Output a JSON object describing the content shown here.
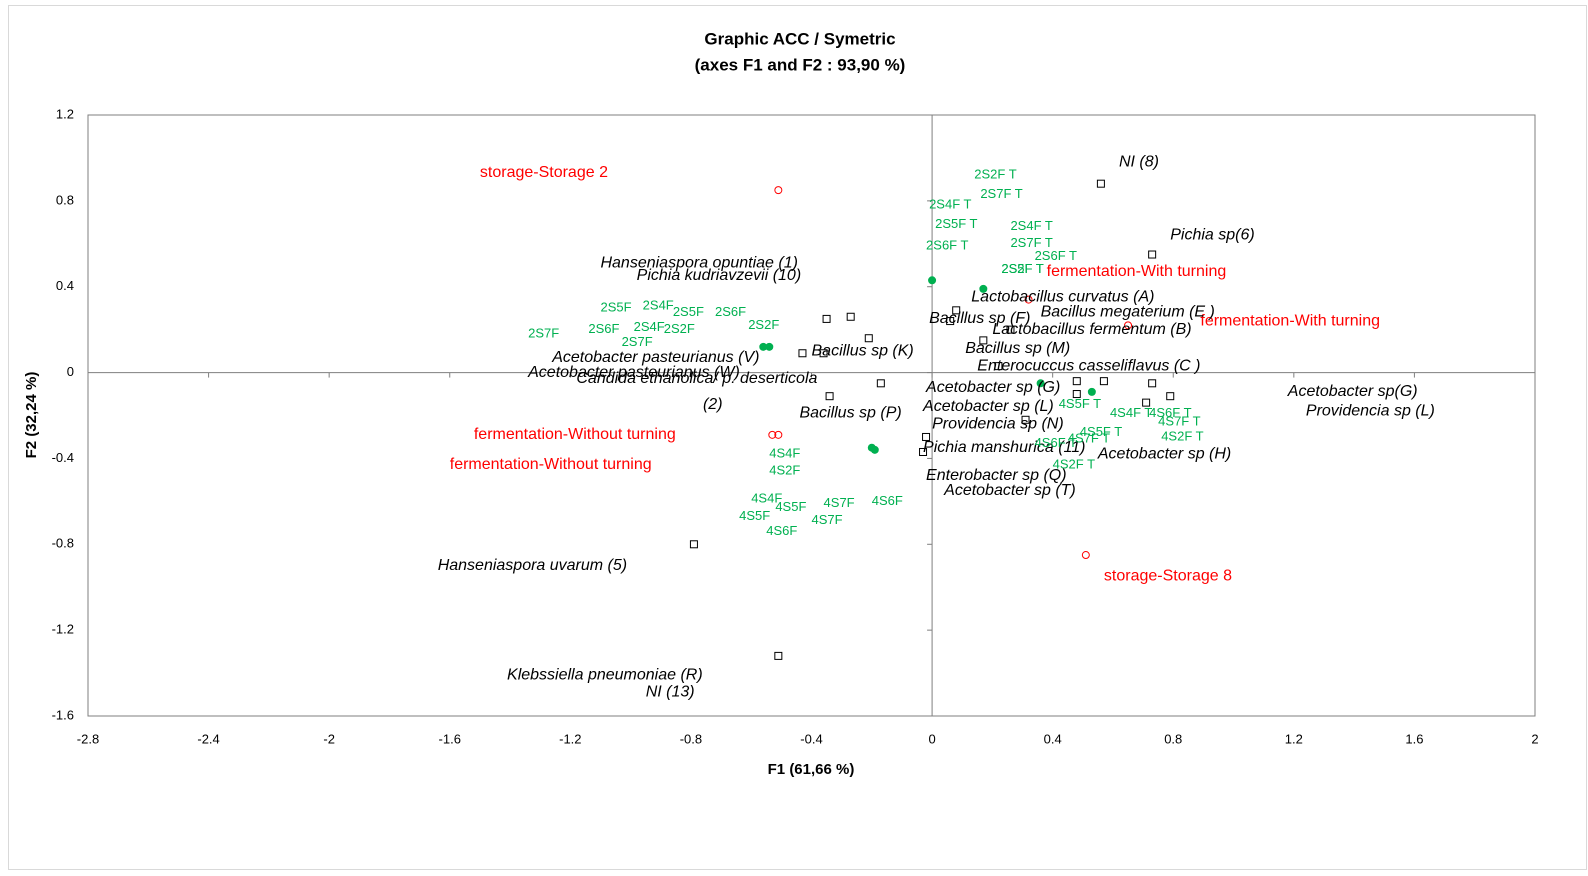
{
  "chart_data": {
    "type": "scatter",
    "title": "Graphic ACC / Symetric",
    "subtitle": "(axes F1 and F2 : 93,90 %)",
    "x_label": "F1 (61,66 %)",
    "y_label": "F2 (32,24 %)",
    "xlim": [
      -2.8,
      2
    ],
    "ylim": [
      -1.6,
      1.2
    ],
    "xticks": [
      -2.8,
      -2.4,
      -2,
      -1.6,
      -1.2,
      -0.8,
      -0.4,
      0,
      0.4,
      0.8,
      1.2,
      1.6,
      2
    ],
    "yticks": [
      -1.6,
      -1.2,
      -0.8,
      -0.4,
      0,
      0.4,
      0.8,
      1.2
    ],
    "series": [
      {
        "marker": "circle-open",
        "color": "#ff0000",
        "x": [
          -0.51,
          0.32,
          0.65,
          -0.53,
          -0.51,
          0.51
        ],
        "y": [
          0.85,
          0.34,
          0.22,
          -0.29,
          -0.29,
          -0.85
        ]
      },
      {
        "marker": "circle-filled",
        "color": "#00b050",
        "x": [
          0,
          0.17,
          -0.56,
          -0.54,
          0.36,
          0.53,
          -0.2,
          -0.19
        ],
        "y": [
          0.43,
          0.39,
          0.12,
          0.12,
          -0.05,
          -0.09,
          -0.35,
          -0.36
        ]
      },
      {
        "marker": "square-open",
        "color": "#000000",
        "x": [
          0.56,
          0.73,
          -0.35,
          -0.27,
          -0.21,
          -0.43,
          -0.36,
          0.08,
          0.06,
          0.17,
          0.26,
          0.22,
          -0.17,
          -0.34,
          0.57,
          0.73,
          0.48,
          0.79,
          0.71,
          0.31,
          -0.02,
          -0.03,
          -0.79,
          -0.51,
          0.48
        ],
        "y": [
          0.88,
          0.55,
          0.25,
          0.26,
          0.16,
          0.09,
          0.09,
          0.29,
          0.24,
          0.15,
          0.2,
          0.03,
          -0.05,
          -0.11,
          -0.04,
          -0.05,
          -0.04,
          -0.11,
          -0.14,
          -0.22,
          -0.3,
          -0.37,
          -0.8,
          -1.32,
          -0.1
        ]
      }
    ],
    "label_groups": [
      {
        "color": "#ff0000",
        "style": "normal",
        "size": 16,
        "items": [
          {
            "text": "storage-Storage 2",
            "x": -1.5,
            "y": 0.93
          },
          {
            "text": "fermentation-With turning",
            "x": 0.38,
            "y": 0.47
          },
          {
            "text": "fermentation-With turning",
            "x": 0.89,
            "y": 0.24
          },
          {
            "text": "fermentation-Without turning",
            "x": -1.52,
            "y": -0.29
          },
          {
            "text": "fermentation-Without turning",
            "x": -1.6,
            "y": -0.43
          },
          {
            "text": "storage-Storage 8",
            "x": 0.57,
            "y": -0.95
          }
        ]
      },
      {
        "color": "#000000",
        "style": "italic",
        "size": 16,
        "items": [
          {
            "text": "NI (8)",
            "x": 0.62,
            "y": 0.98
          },
          {
            "text": "Pichia sp(6)",
            "x": 0.79,
            "y": 0.64
          },
          {
            "text": "Hanseniaspora opuntiae (1)",
            "x": -1.1,
            "y": 0.51
          },
          {
            "text": "Pichia kudriavzevii (10)",
            "x": -0.98,
            "y": 0.45
          },
          {
            "text": "Lactobacillus curvatus (A)",
            "x": 0.13,
            "y": 0.35
          },
          {
            "text": "Bacillus megaterium (E )",
            "x": 0.36,
            "y": 0.28
          },
          {
            "text": "Bacillus sp   (F)",
            "x": -0.01,
            "y": 0.25
          },
          {
            "text": "Lactobacillus fermentum (B)",
            "x": 0.2,
            "y": 0.2
          },
          {
            "text": "Bacillus sp (K)",
            "x": -0.4,
            "y": 0.1
          },
          {
            "text": "Bacillus sp (M)",
            "x": 0.11,
            "y": 0.11
          },
          {
            "text": "Acetobacter pasteurianus  (V)",
            "x": -1.26,
            "y": 0.07
          },
          {
            "text": "Enterocuccus casseliflavus (C )",
            "x": 0.15,
            "y": 0.03
          },
          {
            "text": "Acetobacter pasteurianus (W)",
            "x": -1.34,
            "y": 0.0
          },
          {
            "text": "Candida ethanolica/ p. deserticola",
            "x": -1.18,
            "y": -0.03
          },
          {
            "text": "(2)",
            "x": -0.76,
            "y": -0.15
          },
          {
            "text": "Acetobacter sp (G)",
            "x": -0.02,
            "y": -0.07
          },
          {
            "text": "Acetobacter sp(G)",
            "x": 1.18,
            "y": -0.09
          },
          {
            "text": "Acetobacter sp (L)",
            "x": -0.03,
            "y": -0.16
          },
          {
            "text": "Providencia sp (L)",
            "x": 1.24,
            "y": -0.18
          },
          {
            "text": "Bacillus sp (P)",
            "x": -0.44,
            "y": -0.19
          },
          {
            "text": "Providencia sp (N)",
            "x": 0.0,
            "y": -0.24
          },
          {
            "text": "Pichia manshurica (11)",
            "x": -0.03,
            "y": -0.35
          },
          {
            "text": "Acetobacter sp (H)",
            "x": 0.55,
            "y": -0.38
          },
          {
            "text": "Enterobacter sp (Q)",
            "x": -0.02,
            "y": -0.48
          },
          {
            "text": "Acetobacter sp (T)",
            "x": 0.04,
            "y": -0.55
          },
          {
            "text": "Hanseniaspora uvarum (5)",
            "x": -1.64,
            "y": -0.9
          },
          {
            "text": "Klebssiella pneumoniae (R)",
            "x": -1.41,
            "y": -1.41
          },
          {
            "text": "NI (13)",
            "x": -0.95,
            "y": -1.49
          }
        ]
      },
      {
        "color": "#00b050",
        "style": "normal",
        "size": 13,
        "items": [
          {
            "text": "2S2F T",
            "x": 0.14,
            "y": 0.92
          },
          {
            "text": "2S7F T",
            "x": 0.16,
            "y": 0.83
          },
          {
            "text": "2S4F T",
            "x": -0.01,
            "y": 0.78
          },
          {
            "text": "2S5F T",
            "x": 0.01,
            "y": 0.69
          },
          {
            "text": "2S4F T",
            "x": 0.26,
            "y": 0.68
          },
          {
            "text": "2S7F T",
            "x": 0.26,
            "y": 0.6
          },
          {
            "text": "2S6F T",
            "x": -0.02,
            "y": 0.59
          },
          {
            "text": "2S6F T",
            "x": 0.34,
            "y": 0.54
          },
          {
            "text": "2S2F T",
            "x": 0.23,
            "y": 0.48
          },
          {
            "text": "2S5F T",
            "x": 0.23,
            "y": 0.48
          },
          {
            "text": "2S5F",
            "x": -1.1,
            "y": 0.3
          },
          {
            "text": "2S4F",
            "x": -0.96,
            "y": 0.31
          },
          {
            "text": "2S5F",
            "x": -0.86,
            "y": 0.28
          },
          {
            "text": "2S6F",
            "x": -0.72,
            "y": 0.28
          },
          {
            "text": "2S6F",
            "x": -1.14,
            "y": 0.2
          },
          {
            "text": "2S4F",
            "x": -0.99,
            "y": 0.21
          },
          {
            "text": "2S2F",
            "x": -0.89,
            "y": 0.2
          },
          {
            "text": "2S2F",
            "x": -0.61,
            "y": 0.22
          },
          {
            "text": "2S7F",
            "x": -1.34,
            "y": 0.18
          },
          {
            "text": "2S7F",
            "x": -1.03,
            "y": 0.14
          },
          {
            "text": "4S4F",
            "x": -0.54,
            "y": -0.38
          },
          {
            "text": "4S2F",
            "x": -0.54,
            "y": -0.46
          },
          {
            "text": "4S4F",
            "x": -0.6,
            "y": -0.59
          },
          {
            "text": "4S5F",
            "x": -0.52,
            "y": -0.63
          },
          {
            "text": "4S7F",
            "x": -0.36,
            "y": -0.61
          },
          {
            "text": "4S6F",
            "x": -0.2,
            "y": -0.6
          },
          {
            "text": "4S5F",
            "x": -0.64,
            "y": -0.67
          },
          {
            "text": "4S7F",
            "x": -0.4,
            "y": -0.69
          },
          {
            "text": "4S6F",
            "x": -0.55,
            "y": -0.74
          },
          {
            "text": "4S5F T",
            "x": 0.42,
            "y": -0.15
          },
          {
            "text": "4S4F T",
            "x": 0.59,
            "y": -0.19
          },
          {
            "text": "4S6F T",
            "x": 0.72,
            "y": -0.19
          },
          {
            "text": "4S7F T",
            "x": 0.75,
            "y": -0.23
          },
          {
            "text": "4S5F T",
            "x": 0.49,
            "y": -0.28
          },
          {
            "text": "4S7F T",
            "x": 0.45,
            "y": -0.31
          },
          {
            "text": "4S6F T",
            "x": 0.34,
            "y": -0.33
          },
          {
            "text": "4S2F T",
            "x": 0.76,
            "y": -0.3
          },
          {
            "text": "4S2F T",
            "x": 0.4,
            "y": -0.43
          }
        ]
      }
    ]
  }
}
